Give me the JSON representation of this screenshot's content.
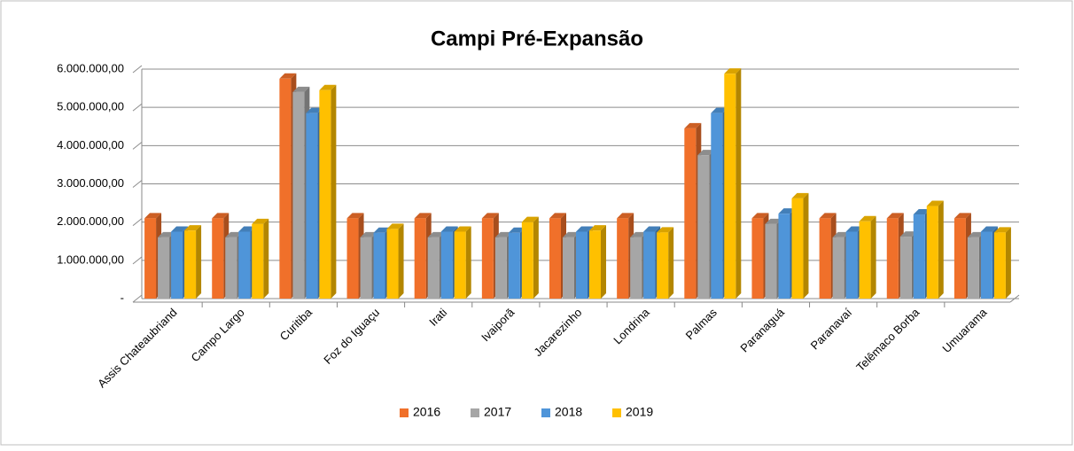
{
  "chart_data": {
    "type": "bar3d",
    "title": "Campi Pré-Expansão",
    "categories": [
      "Assis Chateaubriand",
      "Campo Largo",
      "Curitiba",
      "Foz do Iguaçu",
      "Irati",
      "Ivaiporã",
      "Jacarezinho",
      "Londrina",
      "Palmas",
      "Paranaguá",
      "Paranavaí",
      "Telêmaco Borba",
      "Umuarama"
    ],
    "series": [
      {
        "name": "2016",
        "color": "#f0702a",
        "values": [
          2100000,
          2100000,
          5750000,
          2100000,
          2100000,
          2100000,
          2100000,
          2100000,
          4450000,
          2100000,
          2100000,
          2100000,
          2100000
        ]
      },
      {
        "name": "2017",
        "color": "#a6a6a6",
        "values": [
          1600000,
          1600000,
          5400000,
          1600000,
          1600000,
          1600000,
          1600000,
          1600000,
          3750000,
          1950000,
          1600000,
          1620000,
          1600000
        ]
      },
      {
        "name": "2018",
        "color": "#4f95d9",
        "values": [
          1750000,
          1750000,
          4850000,
          1720000,
          1750000,
          1720000,
          1750000,
          1750000,
          4850000,
          2220000,
          1750000,
          2200000,
          1750000
        ]
      },
      {
        "name": "2019",
        "color": "#ffc000",
        "values": [
          1780000,
          1950000,
          5450000,
          1820000,
          1750000,
          2000000,
          1780000,
          1730000,
          5880000,
          2620000,
          2020000,
          2420000,
          1730000
        ]
      }
    ],
    "ylim": [
      0,
      6000000
    ],
    "yticks": [
      {
        "value": 0,
        "label": "-"
      },
      {
        "value": 1000000,
        "label": "1.000.000,00"
      },
      {
        "value": 2000000,
        "label": "2.000.000,00"
      },
      {
        "value": 3000000,
        "label": "3.000.000,00"
      },
      {
        "value": 4000000,
        "label": "4.000.000,00"
      },
      {
        "value": 5000000,
        "label": "5.000.000,00"
      },
      {
        "value": 6000000,
        "label": "6.000.000,00"
      }
    ],
    "grid": true,
    "legend": "bottom"
  }
}
